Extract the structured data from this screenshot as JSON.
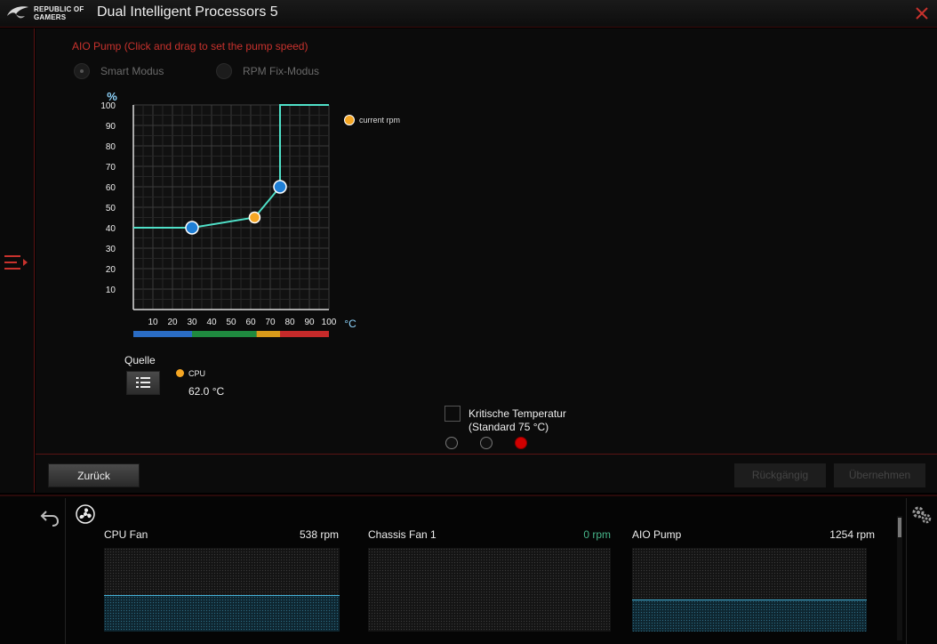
{
  "titlebar": {
    "brand": "REPUBLIC OF GAMERS",
    "title": "Dual Intelligent Processors 5"
  },
  "aio": {
    "heading": "AIO Pump (Click and drag to set the pump speed)",
    "modes": [
      {
        "label": "Smart Modus",
        "selected": true
      },
      {
        "label": "RPM Fix-Modus",
        "selected": false
      }
    ]
  },
  "chart_data": {
    "type": "line",
    "ylabel": "%",
    "xlabel": "°C",
    "xlim": [
      0,
      100
    ],
    "ylim": [
      0,
      100
    ],
    "x_ticks": [
      10,
      20,
      30,
      40,
      50,
      60,
      70,
      80,
      90,
      100
    ],
    "y_ticks": [
      10,
      20,
      30,
      40,
      50,
      60,
      70,
      80,
      90,
      100
    ],
    "series": [
      {
        "name": "pump curve",
        "x": [
          0,
          30,
          62,
          75,
          75,
          100
        ],
        "y": [
          40,
          40,
          45,
          60,
          100,
          100
        ]
      }
    ],
    "control_points": [
      {
        "x": 30,
        "y": 40
      },
      {
        "x": 75,
        "y": 60
      }
    ],
    "current_point": {
      "x": 62,
      "y": 45
    },
    "temperature_bands": [
      {
        "from": 0,
        "to": 30,
        "color": "#2a6cc4"
      },
      {
        "from": 30,
        "to": 63,
        "color": "#1f8a3f"
      },
      {
        "from": 63,
        "to": 75,
        "color": "#d89a1a"
      },
      {
        "from": 75,
        "to": 100,
        "color": "#c62a2a"
      }
    ],
    "line_color": "#4fe0c8",
    "legend": [
      {
        "name": "current rpm",
        "color": "#f5a623"
      }
    ]
  },
  "source": {
    "label": "Quelle",
    "sensor": "CPU",
    "temperature": "62.0 °C"
  },
  "critical": {
    "line1": "Kritische Temperatur",
    "line2": "(Standard 75 °C)",
    "checked": false,
    "options_active_index": 2
  },
  "buttons": {
    "back": "Zurück",
    "undo": "Rückgängig",
    "apply": "Übernehmen"
  },
  "monitor": {
    "fans": [
      {
        "name": "CPU Fan",
        "rpm": "538 rpm",
        "level": 0.44
      },
      {
        "name": "Chassis Fan 1",
        "rpm": "0 rpm",
        "level": 0.0
      },
      {
        "name": "AIO Pump",
        "rpm": "1254 rpm",
        "level": 0.38
      }
    ]
  }
}
